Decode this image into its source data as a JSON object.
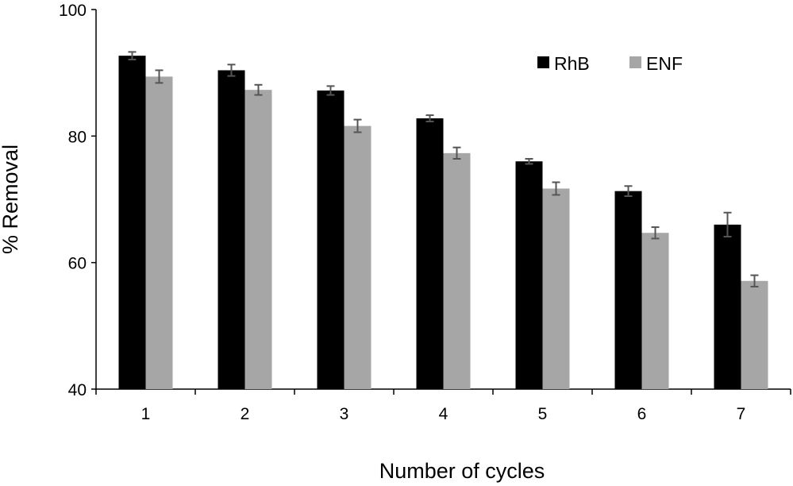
{
  "chart_data": {
    "type": "bar",
    "xlabel": "Number of cycles",
    "ylabel": "% Removal",
    "ylim": [
      40,
      100
    ],
    "yticks": [
      "40",
      "60",
      "80",
      "100"
    ],
    "categories": [
      "1",
      "2",
      "3",
      "4",
      "5",
      "6",
      "7"
    ],
    "series": [
      {
        "name": "RhB",
        "color": "#000000",
        "values": [
          92.7,
          90.4,
          87.2,
          82.8,
          76.0,
          71.3,
          66.0
        ],
        "errors": [
          0.6,
          0.9,
          0.7,
          0.5,
          0.4,
          0.8,
          1.9
        ]
      },
      {
        "name": "ENF",
        "color": "#a6a6a6",
        "values": [
          89.4,
          87.3,
          81.6,
          77.3,
          71.7,
          64.7,
          57.1
        ],
        "errors": [
          1.0,
          0.8,
          1.0,
          0.9,
          1.0,
          0.9,
          0.9
        ]
      }
    ],
    "legend_position": "top-right",
    "grid": false
  }
}
